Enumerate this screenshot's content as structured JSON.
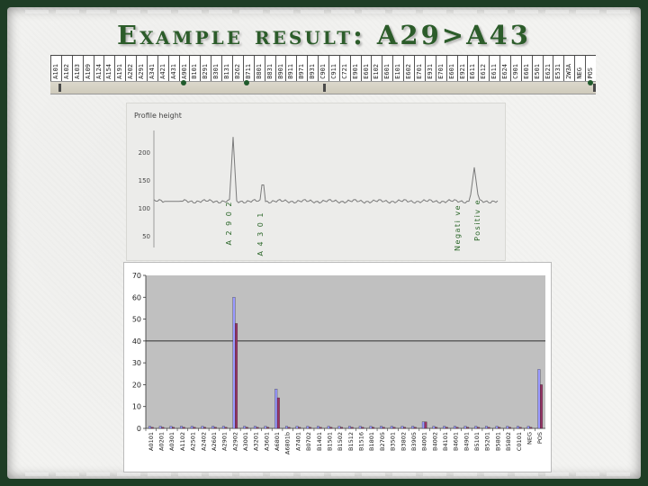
{
  "slide": {
    "title": "Example result: A29>A43"
  },
  "strip": {
    "labels": [
      "A101",
      "A102",
      "A103",
      "A109",
      "A124",
      "A154",
      "A191",
      "A202",
      "A291",
      "A341",
      "A421",
      "A431",
      "A901",
      "B101",
      "B291",
      "B301",
      "B131",
      "B262",
      "B711",
      "B801",
      "B831",
      "B901",
      "B911",
      "B971",
      "B931",
      "C901",
      "C911",
      "C721",
      "E901",
      "E601",
      "E102",
      "E601",
      "E101",
      "E602",
      "E701",
      "E931",
      "E701",
      "E601",
      "E921",
      "E611",
      "E612",
      "E611",
      "E624",
      "C901",
      "E601",
      "E501",
      "E621",
      "E531",
      "2W3A",
      "NEG",
      "POS"
    ],
    "colors": {
      "dot": "#4a4a4a",
      "arrow": "#1f5a2b"
    }
  },
  "profile": {
    "title": "Profile height",
    "yticks": [
      "200",
      "150",
      "100",
      "50"
    ],
    "peak_labels": [
      "A 2 9 0 2",
      "A 4 3 0 1",
      "Negati ve",
      "Positiv e"
    ],
    "line_color": "#7a7a7a",
    "label_color": "#2a6628"
  },
  "chart_data": {
    "type": "bar",
    "title": "",
    "xlabel": "",
    "ylabel": "",
    "ylim": [
      0,
      70
    ],
    "yticks": [
      0,
      10,
      20,
      30,
      40,
      50,
      60,
      70
    ],
    "grid": false,
    "reference_line": 40,
    "plot_background": "#c0c0c0",
    "categories": [
      "A0101",
      "A0201",
      "A0301",
      "A1102",
      "A2501",
      "A2402",
      "A2601",
      "A2901",
      "A2902",
      "A3001",
      "A3201",
      "A3601",
      "A6801",
      "A6801b",
      "A7401",
      "B0702",
      "B1401",
      "B1501",
      "B1502",
      "B1512",
      "B1516",
      "B1801",
      "B2705",
      "B3501",
      "B3802",
      "B3905",
      "B4001",
      "B4002",
      "B4101",
      "B4601",
      "B4901",
      "B5101",
      "B5201",
      "B5801",
      "B5802",
      "C0101",
      "NEG",
      "POS"
    ],
    "series": [
      {
        "color": "#9999ff",
        "values": [
          1,
          1,
          1,
          1,
          1,
          1,
          1,
          1,
          60,
          1,
          1,
          1,
          18,
          1,
          1,
          1,
          1,
          1,
          1,
          1,
          1,
          1,
          1,
          1,
          1,
          1,
          3,
          1,
          1,
          1,
          1,
          1,
          1,
          1,
          1,
          1,
          1,
          27
        ]
      },
      {
        "color": "#993366",
        "values": [
          0.5,
          0.5,
          0.5,
          0.5,
          0.5,
          0.5,
          0.5,
          0.5,
          48,
          0.5,
          0.5,
          0.5,
          14,
          0.5,
          0.5,
          0.5,
          0.5,
          0.5,
          0.5,
          0.5,
          0.5,
          0.5,
          0.5,
          0.5,
          0.5,
          0.5,
          3,
          0.5,
          0.5,
          0.5,
          0.5,
          0.5,
          0.5,
          0.5,
          0.5,
          0.5,
          0.5,
          20
        ]
      }
    ]
  }
}
